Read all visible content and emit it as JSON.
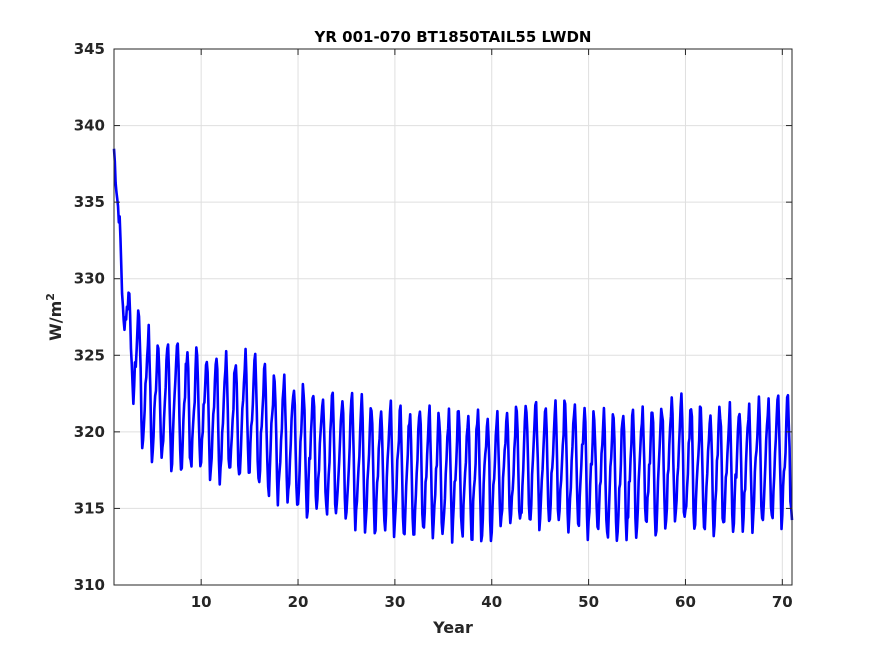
{
  "chart_data": {
    "type": "line",
    "title": "YR 001-070 BT1850TAIL55 LWDN",
    "xlabel": "Year",
    "ylabel_main": "W/m",
    "ylabel_sup": "2",
    "xlim": [
      1,
      71
    ],
    "ylim": [
      310,
      345
    ],
    "xticks": [
      10,
      20,
      30,
      40,
      50,
      60,
      70
    ],
    "yticks": [
      310,
      315,
      320,
      325,
      330,
      335,
      340,
      345
    ],
    "xtick_labels": [
      "10",
      "20",
      "30",
      "40",
      "50",
      "60",
      "70"
    ],
    "ytick_labels": [
      "310",
      "315",
      "320",
      "325",
      "330",
      "335",
      "340",
      "345"
    ],
    "grid": true,
    "line_color": "#0000ff",
    "series": [
      {
        "name": "",
        "sampling": "monthly, years 1-71",
        "annual_means": [
          338.5,
          328.5,
          325.2,
          323.0,
          322.2,
          322.0,
          321.8,
          321.6,
          321.4,
          321.4,
          321.2,
          321.1,
          321.0,
          321.0,
          321.0,
          320.4,
          320.0,
          319.7,
          319.4,
          319.1,
          318.9,
          318.7,
          318.5,
          318.3,
          318.2,
          318.0,
          317.9,
          317.8,
          317.6,
          317.6,
          317.5,
          317.4,
          317.4,
          317.3,
          317.3,
          317.2,
          317.2,
          317.2,
          317.3,
          317.4,
          317.5,
          317.6,
          317.7,
          317.8,
          318.0,
          318.1,
          318.0,
          317.8,
          317.6,
          317.4,
          317.3,
          317.2,
          317.2,
          317.3,
          317.4,
          317.5,
          317.6,
          317.7,
          318.2,
          317.9,
          317.8,
          317.6,
          317.5,
          317.5,
          317.6,
          317.8,
          317.8,
          317.9,
          318.0,
          318.2,
          318.4
        ],
        "seasonal_amplitude": 3.6
      }
    ]
  }
}
